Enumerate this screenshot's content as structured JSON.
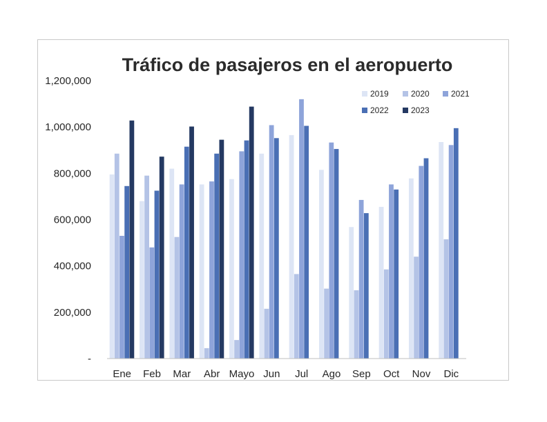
{
  "chart_data": {
    "type": "bar",
    "title": "Tráfico de pasajeros en el aeropuerto",
    "xlabel": "",
    "ylabel": "",
    "categories": [
      "Ene",
      "Feb",
      "Mar",
      "Abr",
      "Mayo",
      "Jun",
      "Jul",
      "Ago",
      "Sep",
      "Oct",
      "Nov",
      "Dic"
    ],
    "ylim": [
      0,
      1200000
    ],
    "y_ticks": [
      0,
      200000,
      400000,
      600000,
      800000,
      1000000,
      1200000
    ],
    "y_tick_labels": [
      "-",
      "200,000",
      "400,000",
      "600,000",
      "800,000",
      "1,000,000",
      "1,200,000"
    ],
    "grid": false,
    "legend_position": "top-right",
    "series": [
      {
        "name": "2019",
        "color": "#dde5f5",
        "values": [
          795000,
          680000,
          820000,
          752000,
          775000,
          885000,
          965000,
          815000,
          568000,
          655000,
          778000,
          935000
        ]
      },
      {
        "name": "2020",
        "color": "#b4c3e6",
        "values": [
          885000,
          790000,
          525000,
          45000,
          80000,
          215000,
          365000,
          302000,
          295000,
          385000,
          440000,
          515000
        ]
      },
      {
        "name": "2021",
        "color": "#8ea4da",
        "values": [
          530000,
          480000,
          752000,
          765000,
          895000,
          1008000,
          1120000,
          933000,
          685000,
          752000,
          832000,
          922000
        ]
      },
      {
        "name": "2022",
        "color": "#4a6fb4",
        "values": [
          745000,
          725000,
          915000,
          885000,
          942000,
          952000,
          1005000,
          905000,
          628000,
          730000,
          865000,
          995000
        ]
      },
      {
        "name": "2023",
        "color": "#243962",
        "values": [
          1028000,
          872000,
          1002000,
          945000,
          1088000,
          null,
          null,
          null,
          null,
          null,
          null,
          null
        ]
      }
    ]
  }
}
